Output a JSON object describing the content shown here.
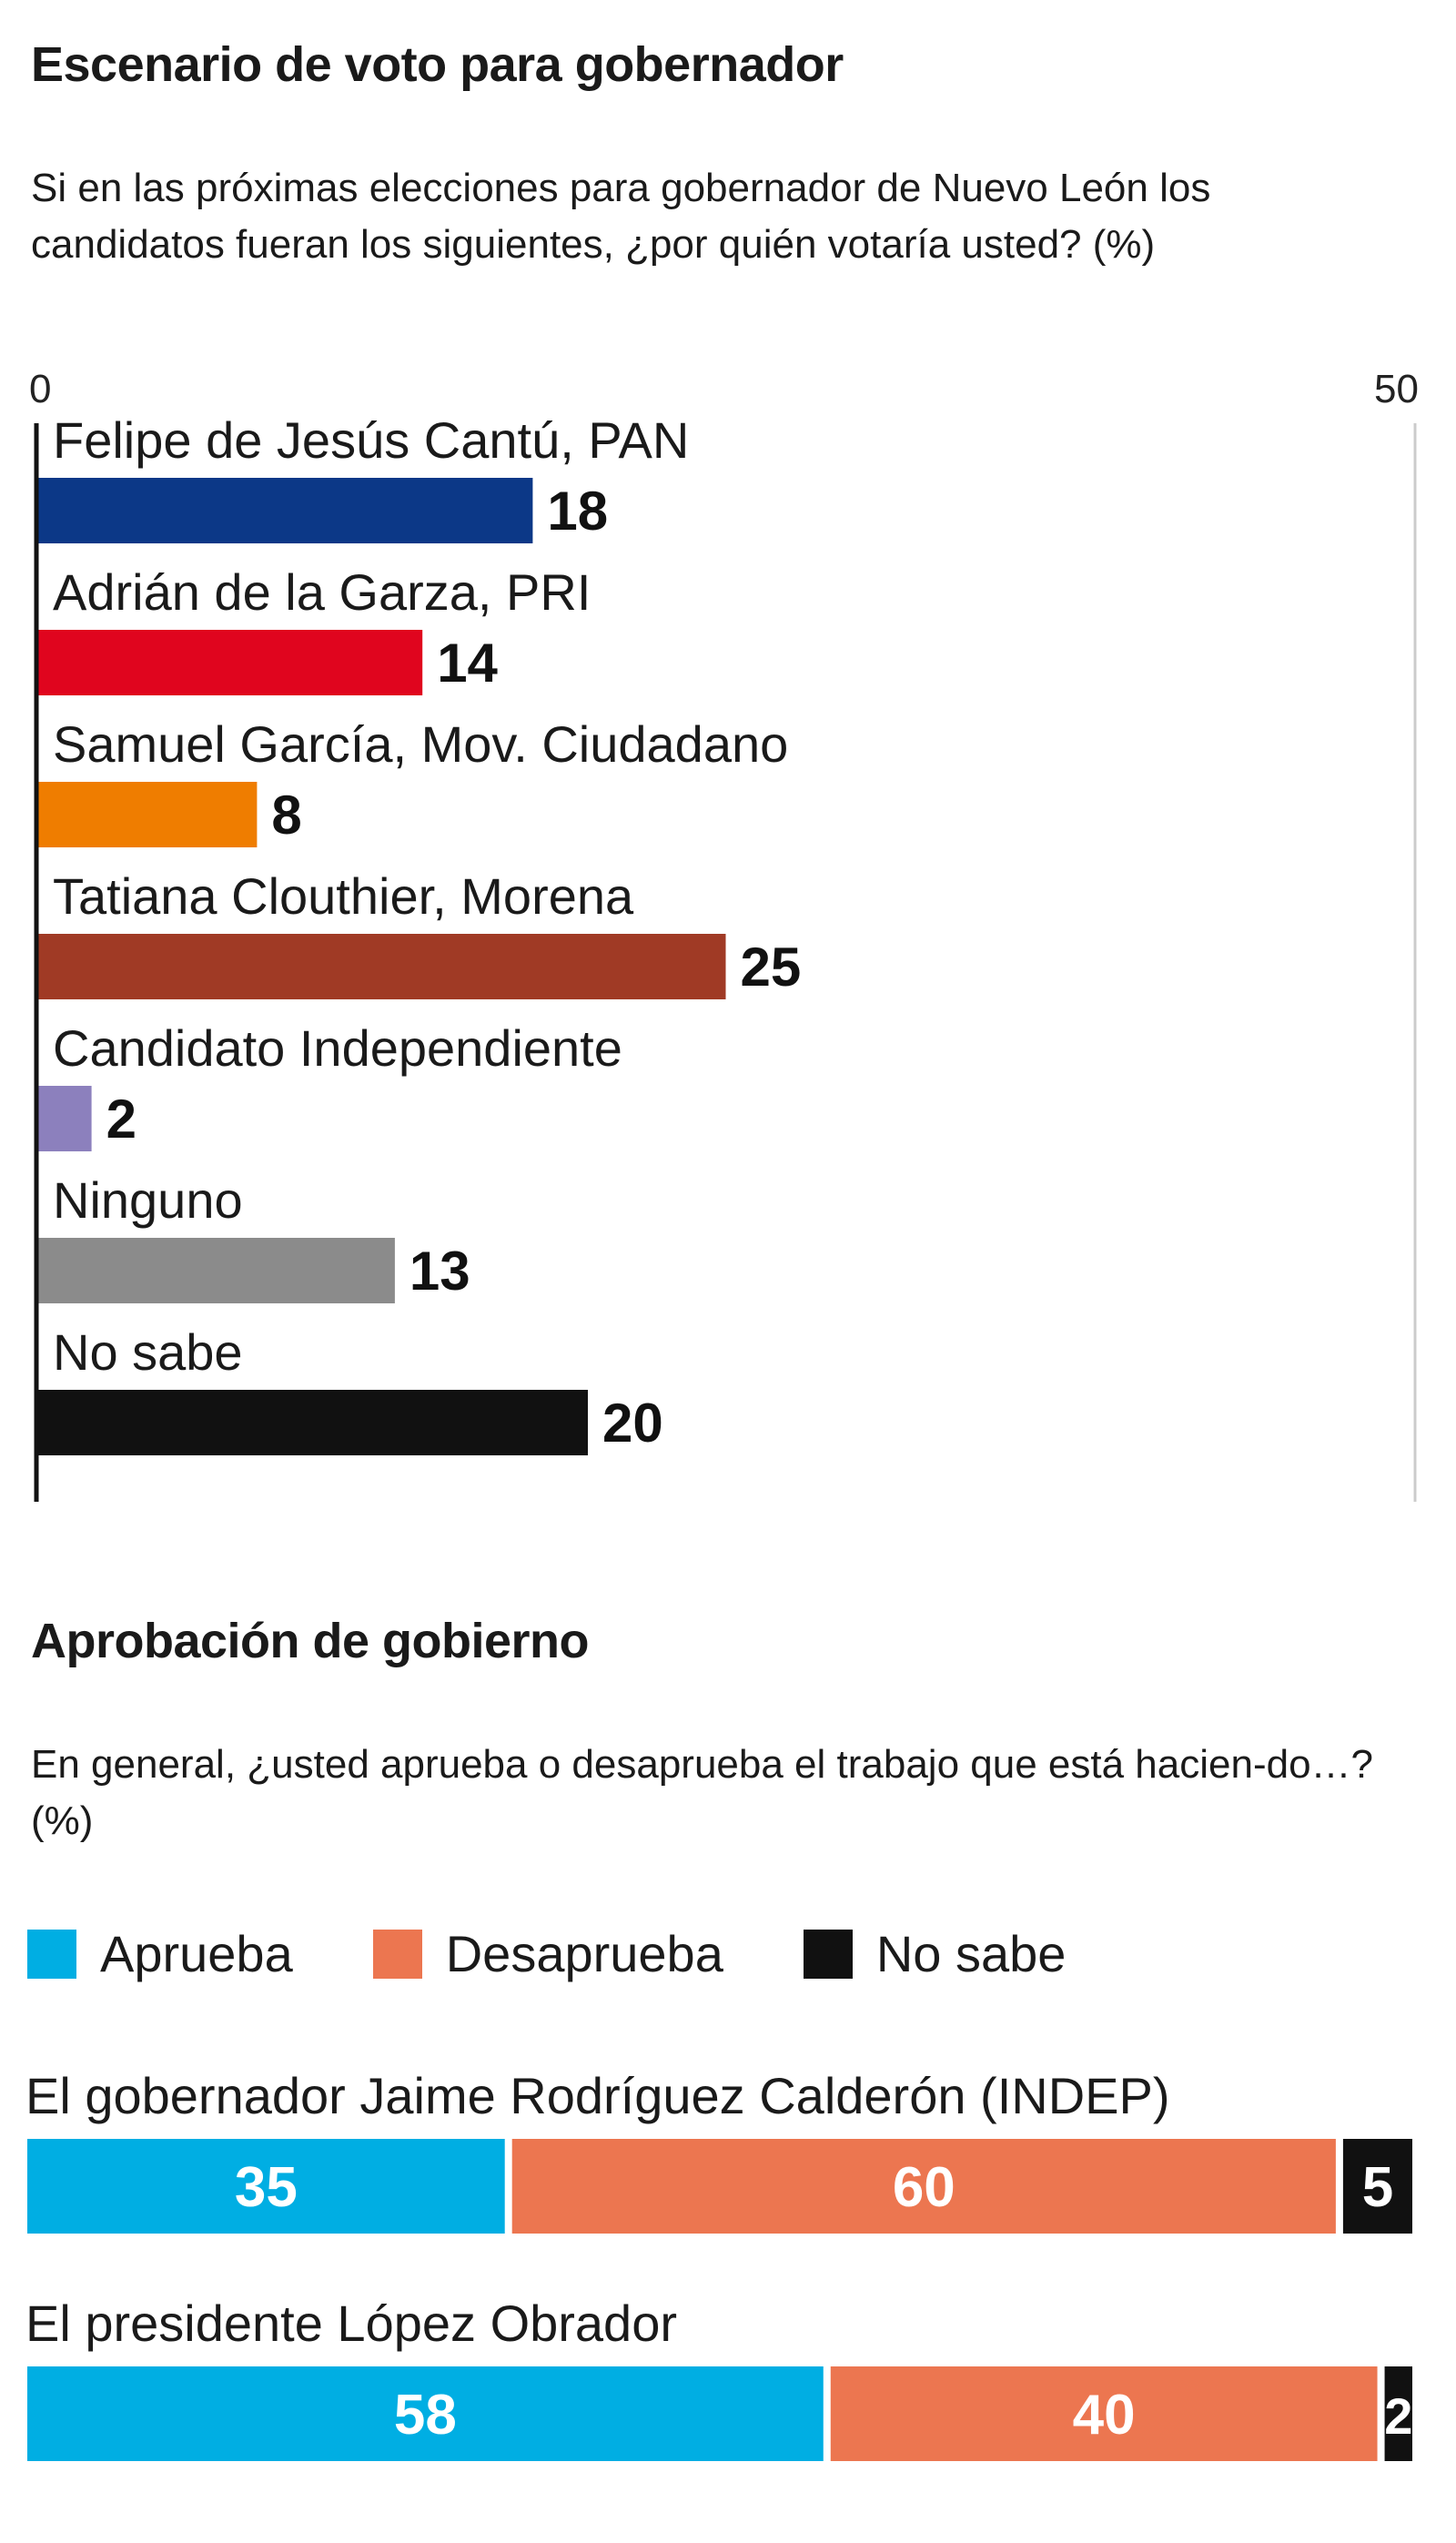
{
  "colors": {
    "pan": "#0c3887",
    "pri": "#e0051e",
    "mc": "#ef7d00",
    "morena": "#a03a25",
    "indep": "#8c80bd",
    "ninguno": "#8b8b8b",
    "nosabe": "#111111",
    "aprueba": "#00aee3",
    "desaprueba": "#ec7650",
    "axis": "#111111",
    "gridline": "#cccccc"
  },
  "section1": {
    "title": "Escenario de voto para gobernador",
    "question": "Si en las próximas elecciones para gobernador de Nuevo León los candidatos fueran los siguientes, ¿por quién votaría usted? (%)"
  },
  "section2": {
    "title": "Aprobación de gobierno",
    "question": "En general, ¿usted aprueba o desaprueba el trabajo que está hacien-do…? (%)"
  },
  "chart_data": [
    {
      "type": "bar",
      "orientation": "horizontal",
      "title": "Escenario de voto para gobernador",
      "categories": [
        "Felipe de Jesús Cantú, PAN",
        "Adrián de la Garza, PRI",
        "Samuel García, Mov. Ciudadano",
        "Tatiana Clouthier, Morena",
        "Candidato Independiente",
        "Ninguno",
        "No sabe"
      ],
      "values": [
        18,
        14,
        8,
        25,
        2,
        13,
        20
      ],
      "colors": [
        "#0c3887",
        "#e0051e",
        "#ef7d00",
        "#a03a25",
        "#8c80bd",
        "#8b8b8b",
        "#111111"
      ],
      "xlim": [
        0,
        50
      ],
      "ticks": [
        "0",
        "50"
      ],
      "data_labels": [
        "18",
        "14",
        "8",
        "25",
        "2",
        "13",
        "20"
      ]
    },
    {
      "type": "bar",
      "orientation": "horizontal",
      "stacked": true,
      "title": "Aprobación de gobierno",
      "categories": [
        "El gobernador Jaime Rodríguez Calderón (INDEP)",
        "El presidente López Obrador"
      ],
      "series": [
        {
          "name": "Aprueba",
          "values": [
            35,
            58
          ],
          "color": "#00aee3"
        },
        {
          "name": "Desaprueba",
          "values": [
            60,
            40
          ],
          "color": "#ec7650"
        },
        {
          "name": "No sabe",
          "values": [
            5,
            2
          ],
          "color": "#111111"
        }
      ],
      "legend": "top-left",
      "xlim": [
        0,
        100
      ]
    }
  ]
}
